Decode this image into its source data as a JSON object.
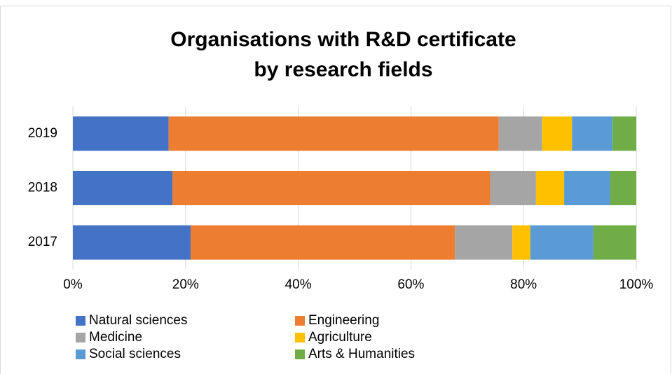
{
  "chart_data": {
    "type": "stacked_bar_horizontal",
    "title": [
      "Organisations with R&D certificate",
      "by research fields"
    ],
    "categories": [
      "2019",
      "2018",
      "2017"
    ],
    "series": [
      {
        "name": "Natural sciences",
        "color": "#4472c4",
        "values": [
          17,
          17.7,
          20.9
        ]
      },
      {
        "name": "Engineering",
        "color": "#ed7d31",
        "values": [
          58.6,
          56.4,
          46.9
        ]
      },
      {
        "name": "Medicine",
        "color": "#a5a5a5",
        "values": [
          7.7,
          8.1,
          10.2
        ]
      },
      {
        "name": "Agriculture",
        "color": "#ffc000",
        "values": [
          5.3,
          5.0,
          3.2
        ]
      },
      {
        "name": "Social sciences",
        "color": "#5b9bd5",
        "values": [
          7.2,
          8.2,
          11.2
        ]
      },
      {
        "name": "Arts & Humanities",
        "color": "#70ad47",
        "values": [
          4.2,
          4.6,
          7.6
        ]
      }
    ],
    "xlim": [
      0,
      100
    ],
    "xticks": [
      {
        "value": 0,
        "label": "0%"
      },
      {
        "value": 20,
        "label": "20%"
      },
      {
        "value": 40,
        "label": "40%"
      },
      {
        "value": 60,
        "label": "60%"
      },
      {
        "value": 80,
        "label": "80%"
      },
      {
        "value": 100,
        "label": "100%"
      }
    ],
    "grid": true,
    "legend": "bottom"
  }
}
